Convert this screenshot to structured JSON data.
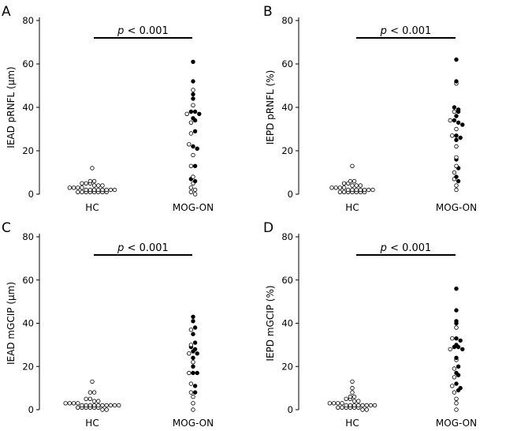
{
  "chart_data": [
    {
      "type": "scatter",
      "panel": "A",
      "ylabel": "IEAD pRNFL (µm)",
      "yticks": [
        0,
        20,
        40,
        60,
        80
      ],
      "ylim": [
        0,
        80
      ],
      "categories": [
        "HC",
        "MOG-ON"
      ],
      "significance": {
        "p": "p",
        "rest": " < 0.001"
      },
      "groups": [
        {
          "name": "HC",
          "open": [
            12,
            6,
            6,
            5,
            5,
            5,
            4,
            4,
            4,
            3,
            3,
            3,
            3,
            2,
            2,
            2,
            2,
            2,
            2,
            2,
            2,
            1,
            1,
            1,
            1,
            1,
            1,
            1,
            1
          ],
          "filled": []
        },
        {
          "name": "MOG-ON",
          "open": [
            48,
            41,
            37,
            33,
            28,
            23,
            18,
            13,
            8,
            5,
            3,
            2,
            1,
            0
          ],
          "filled": [
            61,
            52,
            46,
            44,
            38,
            38,
            37,
            35,
            34,
            29,
            22,
            21,
            13,
            7,
            6
          ]
        }
      ]
    },
    {
      "type": "scatter",
      "panel": "B",
      "ylabel": "IEPD pRNFL (%)",
      "yticks": [
        0,
        20,
        40,
        60,
        80
      ],
      "ylim": [
        0,
        80
      ],
      "categories": [
        "HC",
        "MOG-ON"
      ],
      "significance": {
        "p": "p",
        "rest": " < 0.001"
      },
      "groups": [
        {
          "name": "HC",
          "open": [
            13,
            6,
            6,
            5,
            5,
            4,
            4,
            4,
            3,
            3,
            3,
            3,
            2,
            2,
            2,
            2,
            2,
            2,
            2,
            1,
            1,
            1,
            1,
            1,
            1,
            1
          ],
          "filled": []
        },
        {
          "name": "MOG-ON",
          "open": [
            51,
            38,
            34,
            30,
            27,
            22,
            17,
            13,
            10,
            7,
            4,
            2
          ],
          "filled": [
            62,
            52,
            40,
            39,
            38,
            36,
            34,
            33,
            32,
            27,
            26,
            25,
            16,
            12,
            8,
            6
          ]
        }
      ]
    },
    {
      "type": "scatter",
      "panel": "C",
      "ylabel": "IEAD mGCIP (µm)",
      "yticks": [
        0,
        20,
        40,
        60,
        80
      ],
      "ylim": [
        0,
        80
      ],
      "categories": [
        "HC",
        "MOG-ON"
      ],
      "significance": {
        "p": "p",
        "rest": " < 0.001"
      },
      "groups": [
        {
          "name": "HC",
          "open": [
            13,
            8,
            8,
            5,
            5,
            4,
            4,
            3,
            3,
            3,
            3,
            2,
            2,
            2,
            2,
            2,
            2,
            2,
            2,
            2,
            2,
            1,
            1,
            1,
            1,
            1,
            1,
            0,
            0
          ],
          "filled": []
        },
        {
          "name": "MOG-ON",
          "open": [
            37,
            30,
            26,
            22,
            17,
            12,
            8,
            6,
            3,
            0
          ],
          "filled": [
            43,
            41,
            38,
            35,
            31,
            29,
            28,
            27,
            26,
            24,
            20,
            17,
            17,
            11,
            8
          ]
        }
      ]
    },
    {
      "type": "scatter",
      "panel": "D",
      "ylabel": "IEPD mGCIP (%)",
      "yticks": [
        0,
        20,
        40,
        60,
        80
      ],
      "ylim": [
        0,
        80
      ],
      "categories": [
        "HC",
        "MOG-ON"
      ],
      "significance": {
        "p": "p",
        "rest": " < 0.001"
      },
      "groups": [
        {
          "name": "HC",
          "open": [
            13,
            10,
            8,
            6,
            6,
            5,
            5,
            4,
            4,
            3,
            3,
            3,
            3,
            2,
            2,
            2,
            2,
            2,
            2,
            2,
            2,
            1,
            1,
            1,
            1,
            1,
            1,
            0,
            0
          ],
          "filled": []
        },
        {
          "name": "MOG-ON",
          "open": [
            38,
            33,
            28,
            23,
            19,
            15,
            11,
            8,
            5,
            3,
            0
          ],
          "filled": [
            56,
            46,
            41,
            40,
            33,
            32,
            30,
            29,
            29,
            28,
            24,
            20,
            17,
            16,
            12,
            10,
            9
          ]
        }
      ]
    }
  ]
}
